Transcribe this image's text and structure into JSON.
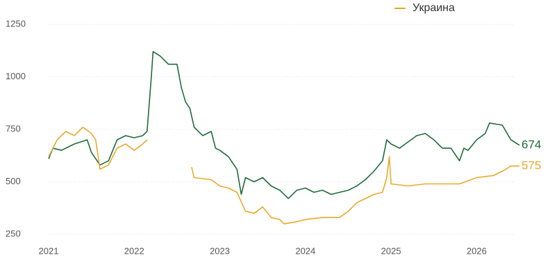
{
  "chart_data": {
    "type": "line",
    "legend_position": "top-right",
    "grid": true,
    "xlim": [
      2021,
      2026.5
    ],
    "xticks": [
      2021,
      2022,
      2023,
      2024,
      2025,
      2026
    ],
    "ylim": [
      240,
      1260
    ],
    "yticks": [
      250,
      500,
      750,
      1000,
      1250
    ],
    "series": [
      {
        "color": "#1e6b3a",
        "x": [
          2021.0,
          2021.05,
          2021.15,
          2021.3,
          2021.45,
          2021.5,
          2021.6,
          2021.7,
          2021.8,
          2021.9,
          2022.0,
          2022.1,
          2022.15,
          2022.2,
          2022.22,
          2022.3,
          2022.4,
          2022.5,
          2022.55,
          2022.6,
          2022.65,
          2022.7,
          2022.8,
          2022.9,
          2022.95,
          2023.0,
          2023.1,
          2023.2,
          2023.25,
          2023.3,
          2023.4,
          2023.5,
          2023.6,
          2023.7,
          2023.8,
          2023.9,
          2024.0,
          2024.1,
          2024.2,
          2024.3,
          2024.4,
          2024.5,
          2024.6,
          2024.7,
          2024.8,
          2024.9,
          2024.95,
          2025.0,
          2025.1,
          2025.2,
          2025.3,
          2025.4,
          2025.5,
          2025.6,
          2025.7,
          2025.8,
          2025.85,
          2025.9,
          2026.0,
          2026.1,
          2026.15,
          2026.3,
          2026.4,
          2026.5
        ],
        "values": [
          610,
          660,
          650,
          680,
          700,
          640,
          580,
          600,
          700,
          720,
          710,
          720,
          740,
          1000,
          1120,
          1100,
          1060,
          1060,
          950,
          880,
          850,
          760,
          720,
          740,
          660,
          650,
          620,
          560,
          440,
          520,
          500,
          520,
          480,
          460,
          420,
          460,
          470,
          450,
          460,
          440,
          450,
          460,
          480,
          510,
          550,
          600,
          700,
          680,
          660,
          690,
          720,
          730,
          700,
          660,
          660,
          600,
          660,
          650,
          700,
          730,
          780,
          770,
          700,
          674
        ]
      },
      {
        "name": "Украина",
        "color": "#e8a92c",
        "x": [
          2021.0,
          2021.1,
          2021.2,
          2021.3,
          2021.4,
          2021.5,
          2021.55,
          2021.6,
          2021.7,
          2021.8,
          2021.9,
          2022.0,
          2022.1,
          2022.15,
          2022.4,
          2022.67,
          2022.7,
          2022.9,
          2023.0,
          2023.1,
          2023.2,
          2023.3,
          2023.4,
          2023.5,
          2023.6,
          2023.7,
          2023.75,
          2023.9,
          2024.0,
          2024.2,
          2024.4,
          2024.5,
          2024.6,
          2024.7,
          2024.8,
          2024.9,
          2024.95,
          2024.98,
          2025.0,
          2025.2,
          2025.4,
          2025.6,
          2025.8,
          2026.0,
          2026.2,
          2026.3,
          2026.4,
          2026.5
        ],
        "values": [
          620,
          700,
          740,
          720,
          760,
          730,
          700,
          560,
          580,
          660,
          680,
          650,
          680,
          700,
          null,
          570,
          520,
          510,
          480,
          470,
          450,
          360,
          350,
          380,
          330,
          320,
          300,
          310,
          320,
          330,
          330,
          360,
          400,
          420,
          440,
          450,
          520,
          620,
          490,
          480,
          490,
          490,
          490,
          520,
          530,
          550,
          575,
          575
        ]
      }
    ]
  }
}
